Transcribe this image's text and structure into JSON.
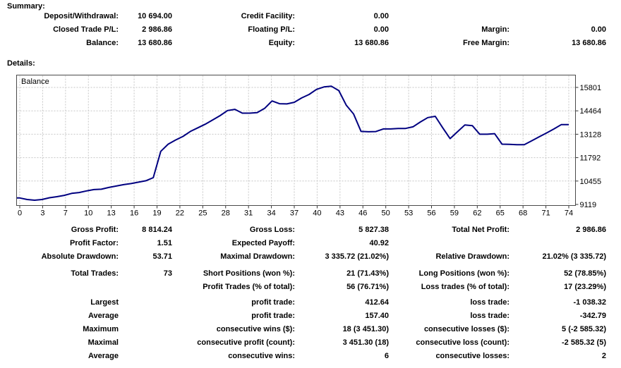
{
  "summary": {
    "title": "Summary:",
    "rows": [
      [
        "Deposit/Withdrawal:",
        "10 694.00",
        "Credit Facility:",
        "0.00",
        "",
        ""
      ],
      [
        "Closed Trade P/L:",
        "2 986.86",
        "Floating P/L:",
        "0.00",
        "Margin:",
        "0.00"
      ],
      [
        "Balance:",
        "13 680.86",
        "Equity:",
        "13 680.86",
        "Free Margin:",
        "13 680.86"
      ]
    ]
  },
  "details": {
    "title": "Details:"
  },
  "chart_data": {
    "type": "line",
    "title": "Balance",
    "series": [
      {
        "name": "Balance",
        "x_is_trade_number": true,
        "values": [
          9490,
          9400,
          9360,
          9400,
          9500,
          9560,
          9640,
          9750,
          9800,
          9890,
          9970,
          9990,
          10090,
          10170,
          10250,
          10310,
          10390,
          10470,
          10650,
          12150,
          12560,
          12800,
          13005,
          13290,
          13495,
          13700,
          13945,
          14190,
          14480,
          14550,
          14330,
          14330,
          14360,
          14600,
          15030,
          14870,
          14860,
          14950,
          15200,
          15400,
          15690,
          15830,
          15870,
          15620,
          14790,
          14280,
          13290,
          13270,
          13280,
          13430,
          13430,
          13460,
          13460,
          13550,
          13830,
          14080,
          14150,
          13500,
          12880,
          13270,
          13660,
          13620,
          13130,
          13130,
          13160,
          12560,
          12550,
          12530,
          12530,
          12750,
          12980,
          13200,
          13430,
          13680,
          13680
        ]
      }
    ],
    "x_range": [
      0,
      74
    ],
    "x_tick_labels": [
      0,
      3,
      7,
      10,
      13,
      16,
      19,
      22,
      25,
      28,
      31,
      34,
      37,
      40,
      43,
      46,
      50,
      53,
      56,
      59,
      62,
      65,
      68,
      71,
      74
    ],
    "y_tick_labels": [
      15801,
      14464,
      13128,
      11792,
      10455,
      9119
    ],
    "grid": true,
    "legend_position": "top-left-inside",
    "line_color": "#000080",
    "grid_color": "#c6c6c6",
    "border_color": "#4a4a4a"
  },
  "stats": {
    "rows": [
      [
        "Gross Profit:",
        "8 814.24",
        "Gross Loss:",
        "5 827.38",
        "Total Net Profit:",
        "2 986.86"
      ],
      [
        "Profit Factor:",
        "1.51",
        "Expected Payoff:",
        "40.92",
        "",
        ""
      ],
      [
        "Absolute Drawdown:",
        "53.71",
        "Maximal Drawdown:",
        "3 335.72 (21.02%)",
        "Relative Drawdown:",
        "21.02% (3 335.72)"
      ],
      [
        "Total Trades:",
        "73",
        "Short Positions (won %):",
        "21 (71.43%)",
        "Long Positions (won %):",
        "52 (78.85%)"
      ],
      [
        "",
        "",
        "Profit Trades (% of total):",
        "56 (76.71%)",
        "Loss trades (% of total):",
        "17 (23.29%)"
      ],
      [
        "Largest",
        "",
        "profit trade:",
        "412.64",
        "loss trade:",
        "-1 038.32"
      ],
      [
        "Average",
        "",
        "profit trade:",
        "157.40",
        "loss trade:",
        "-342.79"
      ],
      [
        "Maximum",
        "",
        "consecutive wins ($):",
        "18 (3 451.30)",
        "consecutive losses ($):",
        "5 (-2 585.32)"
      ],
      [
        "Maximal",
        "",
        "consecutive profit (count):",
        "3 451.30 (18)",
        "consecutive loss (count):",
        "-2 585.32 (5)"
      ],
      [
        "Average",
        "",
        "consecutive wins:",
        "6",
        "consecutive losses:",
        "2"
      ]
    ]
  }
}
